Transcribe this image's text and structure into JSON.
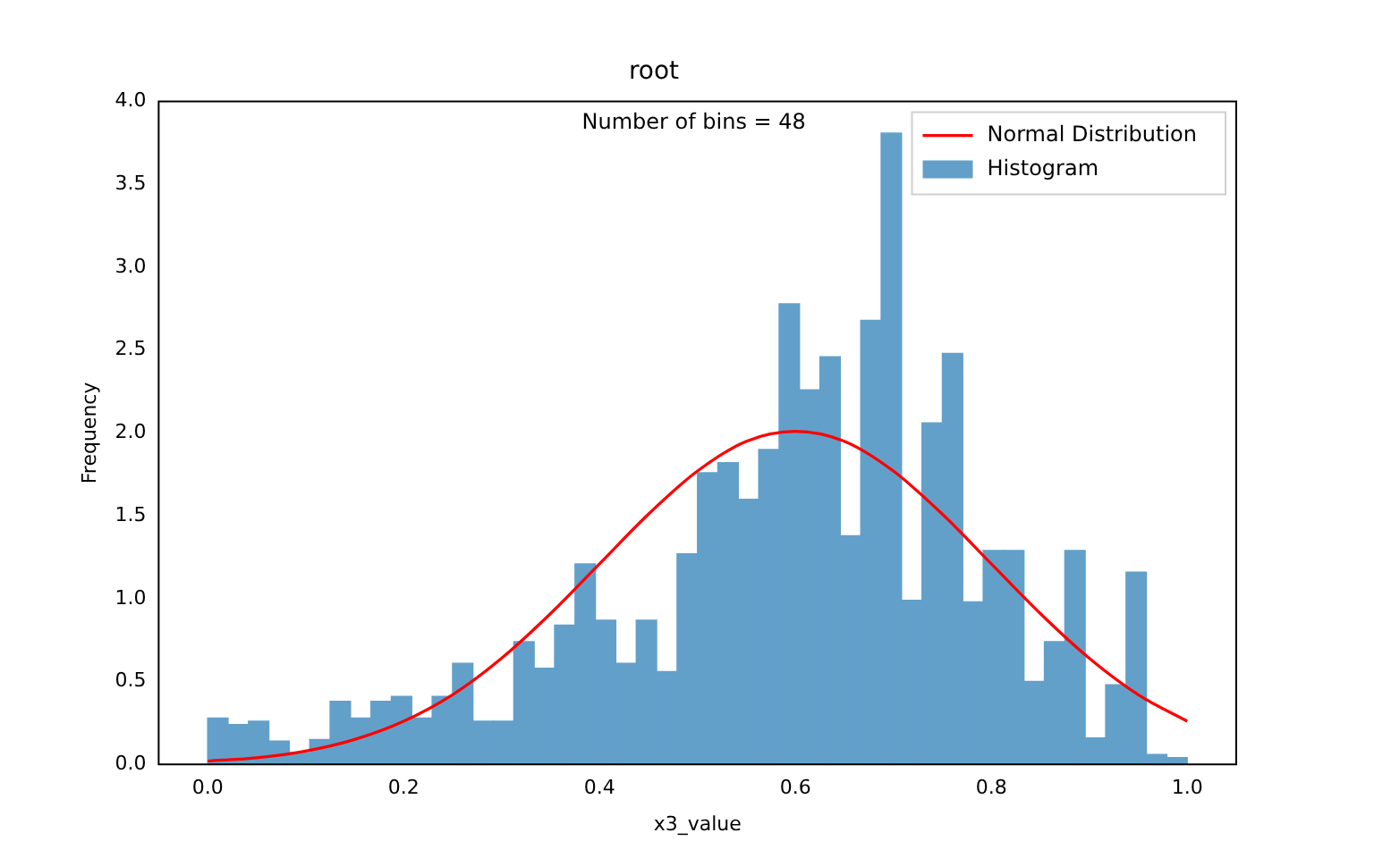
{
  "chart_data": {
    "type": "histogram",
    "title": "root",
    "xlabel": "x3_value",
    "ylabel": "Frequency",
    "annotations": [
      "Number of bins = 48"
    ],
    "xlim": [
      -0.05,
      1.05
    ],
    "xticks": [
      {
        "value": 0,
        "label": "0.0"
      },
      {
        "value": 0.2,
        "label": "0.2"
      },
      {
        "value": 0.4,
        "label": "0.4"
      },
      {
        "value": 0.6,
        "label": "0.6"
      },
      {
        "value": 0.8,
        "label": "0.8"
      },
      {
        "value": 1,
        "label": "1.0"
      }
    ],
    "ylim": [
      0,
      4
    ],
    "yticks": [
      {
        "value": 0,
        "label": "0.0"
      },
      {
        "value": 0.5,
        "label": "0.5"
      },
      {
        "value": 1,
        "label": "1.0"
      },
      {
        "value": 1.5,
        "label": "1.5"
      },
      {
        "value": 2,
        "label": "2.0"
      },
      {
        "value": 2.5,
        "label": "2.5"
      },
      {
        "value": 3,
        "label": "3.0"
      },
      {
        "value": 3.5,
        "label": "3.5"
      },
      {
        "value": 4,
        "label": "4.0"
      }
    ],
    "grid": false,
    "legend": "top right",
    "bins": [
      0,
      0.020833,
      0.041667,
      0.0625,
      0.083333,
      0.104167,
      0.125,
      0.145833,
      0.166667,
      0.1875,
      0.208333,
      0.229167,
      0.25,
      0.270833,
      0.291667,
      0.3125,
      0.333333,
      0.354167,
      0.375,
      0.395833,
      0.416667,
      0.4375,
      0.458333,
      0.479167,
      0.5,
      0.520833,
      0.541667,
      0.5625,
      0.583333,
      0.604167,
      0.625,
      0.645833,
      0.666667,
      0.6875,
      0.708333,
      0.729167,
      0.75,
      0.770833,
      0.791667,
      0.8125,
      0.833333,
      0.854167,
      0.875,
      0.895833,
      0.916667,
      0.9375,
      0.958333,
      0.979167,
      1
    ],
    "series": [
      {
        "name": "Normal Distribution",
        "type": "line",
        "color": "#ff0000",
        "x": [
          0,
          0.05,
          0.1,
          0.15,
          0.2,
          0.25,
          0.3,
          0.35,
          0.4,
          0.45,
          0.5,
          0.55,
          0.6,
          0.65,
          0.7,
          0.75,
          0.8,
          0.85,
          0.9,
          0.95,
          1
        ],
        "values": [
          0.02,
          0.04,
          0.08,
          0.15,
          0.26,
          0.42,
          0.64,
          0.91,
          1.21,
          1.51,
          1.77,
          1.95,
          2.01,
          1.95,
          1.77,
          1.51,
          1.21,
          0.91,
          0.64,
          0.42,
          0.26
        ]
      },
      {
        "name": "Histogram",
        "type": "histogram",
        "color": "#62a0ca",
        "values": [
          0.28,
          0.24,
          0.26,
          0.14,
          0.07,
          0.15,
          0.38,
          0.28,
          0.38,
          0.41,
          0.28,
          0.41,
          0.61,
          0.26,
          0.26,
          0.74,
          0.58,
          0.84,
          1.21,
          0.87,
          0.61,
          0.87,
          0.56,
          1.27,
          1.76,
          1.82,
          1.6,
          1.9,
          2.78,
          2.26,
          2.46,
          1.38,
          2.68,
          3.81,
          0.99,
          2.06,
          2.48,
          0.98,
          1.29,
          1.29,
          0.5,
          0.74,
          1.29,
          0.16,
          0.48,
          1.16,
          0.06,
          0.04
        ]
      }
    ]
  }
}
